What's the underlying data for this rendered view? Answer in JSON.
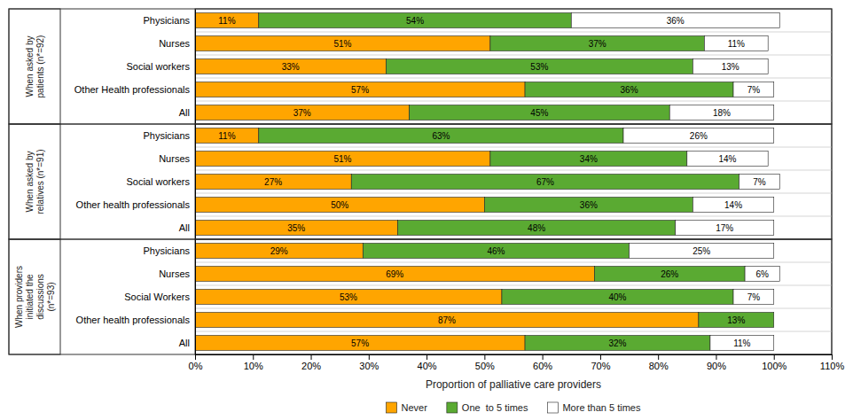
{
  "chart_data": [
    {
      "type": "bar",
      "orientation": "horizontal",
      "stacked": true,
      "data_labels": true,
      "tick_labels": "y",
      "title": "When asked by\npatients (n*=92)",
      "categories": [
        "Physicians",
        "Nurses",
        "Social workers",
        "Other Health professionals",
        "All"
      ],
      "xlim": [
        0,
        110
      ],
      "series": [
        {
          "name": "Never",
          "color": "#FFA500",
          "values": [
            11,
            51,
            33,
            57,
            37
          ],
          "value_labels": [
            "11%",
            "51%",
            "33%",
            "57%",
            "37%"
          ]
        },
        {
          "name": "One  to 5 times",
          "color": "#5AAA32",
          "values": [
            54,
            37,
            53,
            36,
            45
          ],
          "value_labels": [
            "54%",
            "37%",
            "53%",
            "36%",
            "45%"
          ]
        },
        {
          "name": "More than 5 times",
          "color": "#FFFFFF",
          "values": [
            36,
            11,
            13,
            7,
            18
          ],
          "value_labels": [
            "36%",
            "11%",
            "13%",
            "7%",
            "18%"
          ]
        }
      ]
    },
    {
      "type": "bar",
      "orientation": "horizontal",
      "stacked": true,
      "data_labels": true,
      "tick_labels": "y",
      "title": "When asked by\nrelatives (n*=91)",
      "categories": [
        "Physicians",
        "Nurses",
        "Social workers",
        "Other health professionals",
        "All"
      ],
      "xlim": [
        0,
        110
      ],
      "series": [
        {
          "name": "Never",
          "color": "#FFA500",
          "values": [
            11,
            51,
            27,
            50,
            35
          ],
          "value_labels": [
            "11%",
            "51%",
            "27%",
            "50%",
            "35%"
          ]
        },
        {
          "name": "One  to 5 times",
          "color": "#5AAA32",
          "values": [
            63,
            34,
            67,
            36,
            48
          ],
          "value_labels": [
            "63%",
            "34%",
            "67%",
            "36%",
            "48%"
          ]
        },
        {
          "name": "More than 5 times",
          "color": "#FFFFFF",
          "values": [
            26,
            14,
            7,
            14,
            17
          ],
          "value_labels": [
            "26%",
            "14%",
            "7%",
            "14%",
            "17%"
          ]
        }
      ]
    },
    {
      "type": "bar",
      "orientation": "horizontal",
      "stacked": true,
      "data_labels": true,
      "legend": "bottom",
      "title": "When providers\ninitiated the\ndiscussions\n(n*=93)",
      "categories": [
        "Physicians",
        "Nurses",
        "Social Workers",
        "Other health professionals",
        "All"
      ],
      "xlabel": "Proportion of palliative care providers",
      "xlim": [
        0,
        110
      ],
      "xticks": [
        {
          "value": 0,
          "label": "0%"
        },
        {
          "value": 10,
          "label": "10%"
        },
        {
          "value": 20,
          "label": "20%"
        },
        {
          "value": 30,
          "label": "30%"
        },
        {
          "value": 40,
          "label": "40%"
        },
        {
          "value": 50,
          "label": "50%"
        },
        {
          "value": 60,
          "label": "60%"
        },
        {
          "value": 70,
          "label": "70%"
        },
        {
          "value": 80,
          "label": "80%"
        },
        {
          "value": 90,
          "label": "90%"
        },
        {
          "value": 100,
          "label": "100%"
        },
        {
          "value": 110,
          "label": "110%"
        }
      ],
      "series": [
        {
          "name": "Never",
          "color": "#FFA500",
          "values": [
            29,
            69,
            53,
            87,
            57
          ],
          "value_labels": [
            "29%",
            "69%",
            "53%",
            "87%",
            "57%"
          ]
        },
        {
          "name": "One  to 5 times",
          "color": "#5AAA32",
          "values": [
            46,
            26,
            40,
            13,
            32
          ],
          "value_labels": [
            "46%",
            "26%",
            "40%",
            "13%",
            "32%"
          ]
        },
        {
          "name": "More than 5 times",
          "color": "#FFFFFF",
          "values": [
            25,
            6,
            7,
            0,
            11
          ],
          "value_labels": [
            "25%",
            "6%",
            "7%",
            null,
            "11%"
          ]
        }
      ]
    }
  ]
}
